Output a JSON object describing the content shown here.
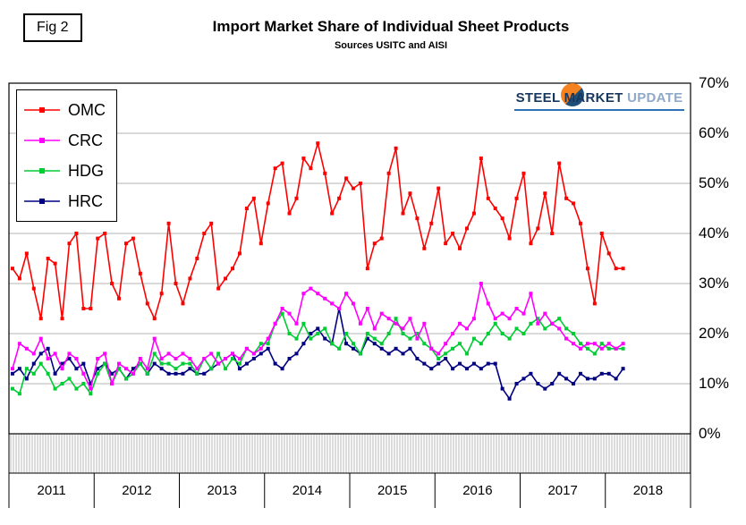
{
  "header": {
    "fig_label": "Fig 2",
    "title": "Import Market Share of Individual Sheet Products",
    "subtitle": "Sources USITC and AISI"
  },
  "logo": {
    "part1": "STEEL",
    "part2": "MARKET",
    "part3": "UPDATE",
    "circle_colors": [
      "#f58220",
      "#1f4e79"
    ]
  },
  "chart_data": {
    "type": "line",
    "title": "Import Market Share of Individual Sheet Products",
    "subtitle": "Sources USITC and AISI",
    "grid": "horizontal",
    "legend_position": "top-left",
    "x_axis": {
      "start": "2011-01",
      "frequency": "monthly",
      "year_labels": [
        "2011",
        "2012",
        "2013",
        "2014",
        "2015",
        "2016",
        "2017",
        "2018"
      ],
      "months_span": 96
    },
    "y_axis": {
      "min": 0,
      "max": 70,
      "step": 10,
      "position": "right",
      "tick_labels": [
        "0%",
        "10%",
        "20%",
        "30%",
        "40%",
        "50%",
        "60%",
        "70%"
      ]
    },
    "series": [
      {
        "name": "OMC",
        "color": "#ff0000",
        "values": [
          33,
          31,
          36,
          29,
          23,
          35,
          34,
          23,
          38,
          40,
          25,
          25,
          39,
          40,
          30,
          27,
          38,
          39,
          32,
          26,
          23,
          28,
          42,
          30,
          26,
          31,
          35,
          40,
          42,
          29,
          31,
          33,
          36,
          45,
          47,
          38,
          46,
          53,
          54,
          44,
          47,
          55,
          53,
          58,
          52,
          44,
          47,
          51,
          49,
          50,
          33,
          38,
          39,
          52,
          57,
          44,
          48,
          43,
          37,
          42,
          49,
          38,
          40,
          37,
          41,
          44,
          55,
          47,
          45,
          43,
          39,
          47,
          52,
          38,
          41,
          48,
          40,
          54,
          47,
          46,
          42,
          33,
          26,
          40,
          36,
          33,
          33
        ]
      },
      {
        "name": "CRC",
        "color": "#ff00ff",
        "values": [
          13,
          18,
          17,
          16,
          19,
          15,
          16,
          13,
          16,
          15,
          12,
          9,
          15,
          16,
          10,
          14,
          13,
          12,
          15,
          13,
          19,
          15,
          16,
          15,
          16,
          15,
          13,
          15,
          16,
          14,
          15,
          16,
          15,
          17,
          16,
          17,
          19,
          22,
          25,
          24,
          22,
          28,
          29,
          28,
          27,
          26,
          25,
          28,
          26,
          22,
          25,
          21,
          24,
          23,
          22,
          21,
          23,
          19,
          22,
          17,
          16,
          18,
          20,
          22,
          21,
          23,
          30,
          26,
          23,
          24,
          23,
          25,
          24,
          28,
          22,
          24,
          22,
          21,
          19,
          18,
          17,
          18,
          18,
          17,
          18,
          17,
          18
        ]
      },
      {
        "name": "HDG",
        "color": "#00cc33",
        "values": [
          9,
          8,
          13,
          12,
          14,
          12,
          9,
          10,
          11,
          9,
          10,
          8,
          12,
          14,
          10,
          13,
          11,
          12,
          14,
          12,
          16,
          14,
          14,
          13,
          14,
          14,
          12,
          15,
          13,
          16,
          13,
          15,
          14,
          17,
          16,
          18,
          18,
          22,
          24,
          20,
          19,
          22,
          19,
          20,
          21,
          18,
          17,
          20,
          18,
          16,
          20,
          19,
          18,
          20,
          23,
          20,
          19,
          20,
          18,
          17,
          15,
          16,
          17,
          18,
          16,
          19,
          18,
          20,
          22,
          20,
          19,
          21,
          20,
          22,
          23,
          21,
          22,
          23,
          21,
          20,
          18,
          17,
          16,
          18,
          17,
          17,
          17
        ]
      },
      {
        "name": "HRC",
        "color": "#000080",
        "values": [
          12,
          13,
          11,
          14,
          16,
          17,
          12,
          14,
          15,
          13,
          14,
          10,
          13,
          14,
          12,
          13,
          11,
          13,
          14,
          12,
          14,
          13,
          12,
          12,
          12,
          13,
          12,
          12,
          13,
          14,
          15,
          16,
          13,
          14,
          15,
          16,
          17,
          14,
          13,
          15,
          16,
          18,
          20,
          21,
          19,
          18,
          25,
          18,
          17,
          16,
          19,
          18,
          17,
          16,
          17,
          16,
          17,
          15,
          14,
          13,
          14,
          15,
          13,
          14,
          13,
          14,
          13,
          14,
          14,
          9,
          7,
          10,
          11,
          12,
          10,
          9,
          10,
          12,
          11,
          10,
          12,
          11,
          11,
          12,
          12,
          11,
          13
        ]
      }
    ]
  }
}
